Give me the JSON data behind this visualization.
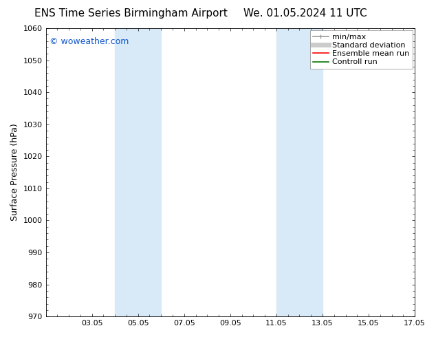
{
  "title_left": "ENS Time Series Birmingham Airport",
  "title_right": "We. 01.05.2024 11 UTC",
  "ylabel": "Surface Pressure (hPa)",
  "ylim": [
    970,
    1060
  ],
  "yticks": [
    970,
    980,
    990,
    1000,
    1010,
    1020,
    1030,
    1040,
    1050,
    1060
  ],
  "xlim": [
    1.0,
    17.0
  ],
  "xtick_labels": [
    "03.05",
    "05.05",
    "07.05",
    "09.05",
    "11.05",
    "13.05",
    "15.05",
    "17.05"
  ],
  "xtick_positions": [
    3,
    5,
    7,
    9,
    11,
    13,
    15,
    17
  ],
  "shaded_bands": [
    {
      "x_start": 4.0,
      "x_end": 6.0,
      "color": "#d8eaf8"
    },
    {
      "x_start": 11.0,
      "x_end": 13.0,
      "color": "#d8eaf8"
    }
  ],
  "watermark_text": "© woweather.com",
  "watermark_color": "#1155cc",
  "background_color": "#ffffff",
  "legend_entries": [
    {
      "label": "min/max",
      "color": "#999999",
      "lw": 1.2
    },
    {
      "label": "Standard deviation",
      "color": "#cccccc",
      "lw": 5
    },
    {
      "label": "Ensemble mean run",
      "color": "#ff0000",
      "lw": 1.2
    },
    {
      "label": "Controll run",
      "color": "#007700",
      "lw": 1.2
    }
  ],
  "title_fontsize": 11,
  "axis_label_fontsize": 9,
  "tick_fontsize": 8,
  "legend_fontsize": 8,
  "watermark_fontsize": 9
}
